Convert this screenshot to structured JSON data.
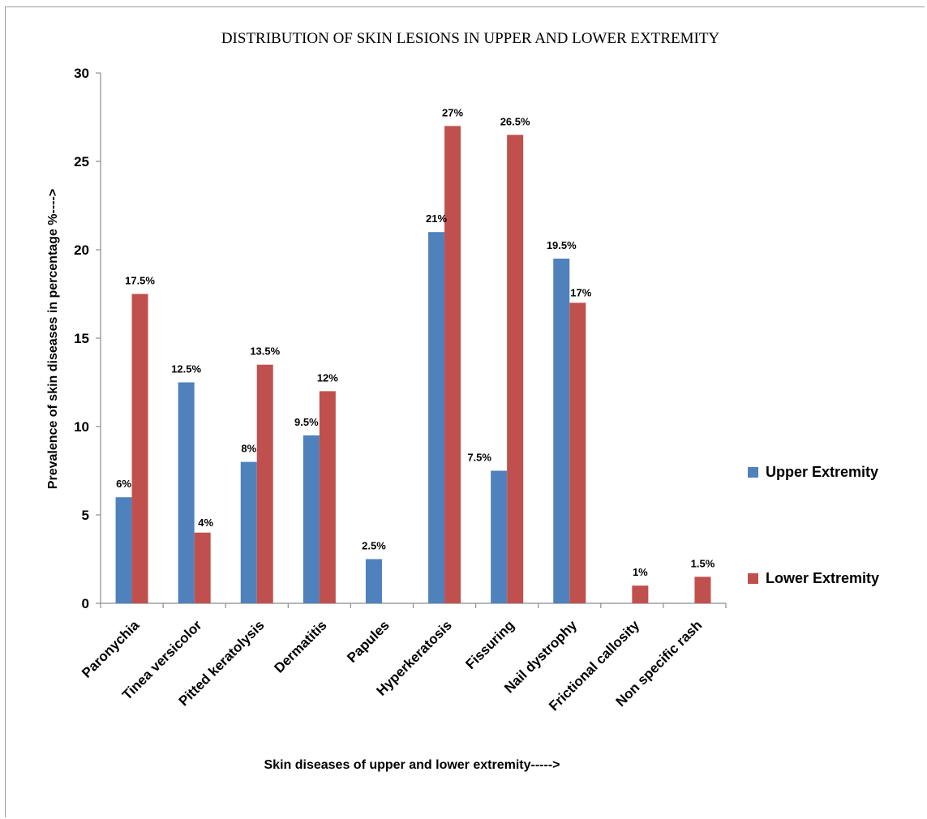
{
  "chart_data": {
    "type": "bar",
    "title": "DISTRIBUTION OF SKIN LESIONS IN UPPER AND LOWER EXTREMITY",
    "xlabel": "Skin diseases of upper and lower extremity----->",
    "ylabel": "Prevalence of skin diseases  in percentage %---->",
    "ylim": [
      0,
      30
    ],
    "yticks": [
      0,
      5,
      10,
      15,
      20,
      25,
      30
    ],
    "grid": false,
    "legend_position": "right",
    "categories": [
      "Paronychia",
      "Tinea versicolor",
      "Pitted keratolysis",
      "Dermatitis",
      "Papules",
      "Hyperkeratosis",
      "Fissuring",
      "Nail dystrophy",
      "Frictional callosity",
      "Non specific rash"
    ],
    "series": [
      {
        "name": "Upper Extremity",
        "color": "#4f81bd",
        "values": [
          6,
          12.5,
          8,
          9.5,
          2.5,
          21,
          7.5,
          19.5,
          0,
          0
        ],
        "labels": [
          "6%",
          "12.5%",
          "8%",
          "9.5%",
          "2.5%",
          "21%",
          "7.5%",
          "19.5%",
          "",
          ""
        ]
      },
      {
        "name": "Lower Extremity",
        "color": "#c0504d",
        "values": [
          17.5,
          4,
          13.5,
          12,
          0,
          27,
          26.5,
          17,
          1,
          1.5
        ],
        "labels": [
          "17.5%",
          "4%",
          "13.5%",
          "12%",
          "",
          "27%",
          "26.5%",
          "17%",
          "1%",
          "1.5%"
        ]
      }
    ]
  }
}
